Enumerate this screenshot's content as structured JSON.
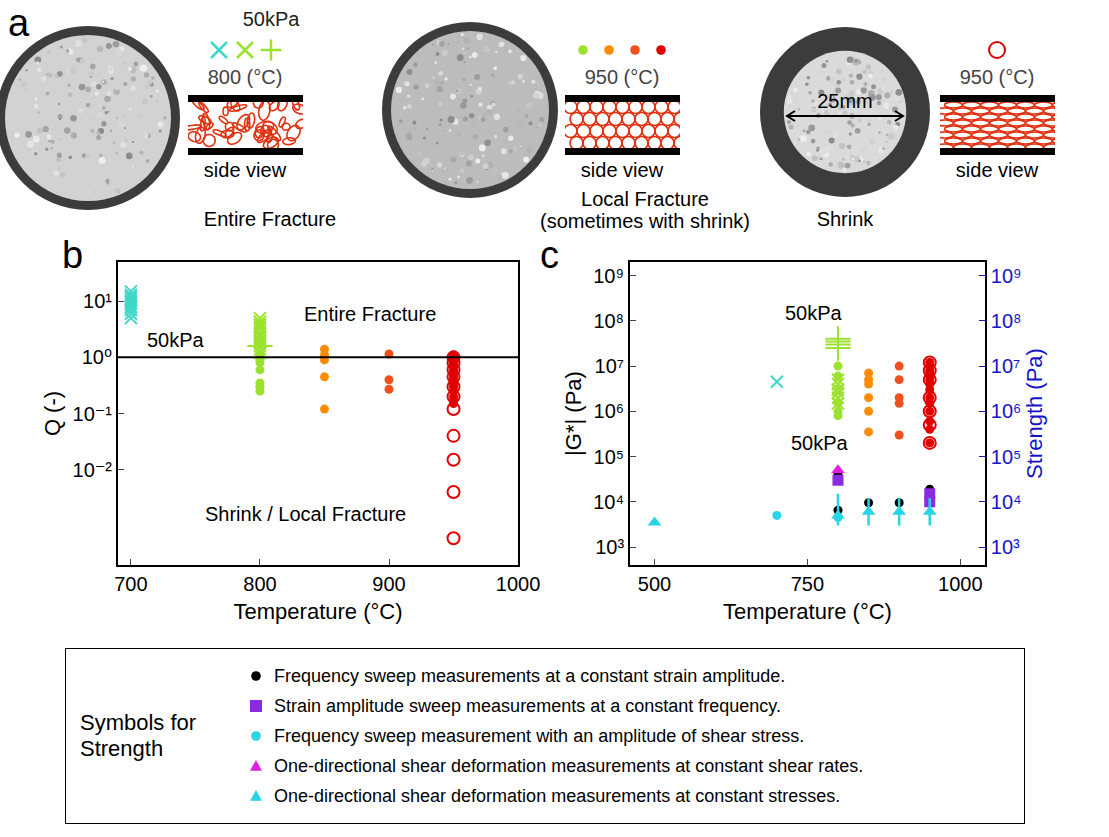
{
  "figure": {
    "panel_a": {
      "label": "a",
      "samples": [
        {
          "marks": [
            {
              "marker": "x",
              "color": "#3fd7c8"
            },
            {
              "marker": "x",
              "color": "#9be22f"
            },
            {
              "marker": "cross",
              "color": "#9be22f"
            }
          ],
          "pressure": "50kPa",
          "temperature": "800 (°C)",
          "side_label": "side view",
          "caption": [
            "Entire Fracture"
          ]
        },
        {
          "marks": [
            {
              "marker": "circle",
              "color": "#9be22f"
            },
            {
              "marker": "circle",
              "color": "#ff8c00"
            },
            {
              "marker": "circle",
              "color": "#f0501e"
            },
            {
              "marker": "circle",
              "color": "#e00000"
            }
          ],
          "temperature": "950 (°C)",
          "side_label": "side view",
          "caption": [
            "Local Fracture",
            "(sometimes with shrink)"
          ]
        },
        {
          "marks": [
            {
              "marker": "circle-open",
              "color": "#e00000"
            }
          ],
          "temperature": "950 (°C)",
          "side_label": "side view",
          "caption": [
            "Shrink"
          ],
          "scale_label": "25mm"
        }
      ]
    }
  },
  "chart_data": [
    {
      "type": "scatter",
      "label": "b",
      "x_label": "Temperature (°C)",
      "y_label": "Q (-)",
      "log": "y",
      "grid": false,
      "xlim": [
        690,
        1000
      ],
      "xticks": [
        700,
        800,
        900,
        1000
      ],
      "ylim": [
        0.0002,
        50
      ],
      "yticks": [
        {
          "value": 0.01,
          "label": "10⁻²"
        },
        {
          "value": 0.1,
          "label": "10⁻¹"
        },
        {
          "value": 1,
          "label": "10⁰"
        },
        {
          "value": 10,
          "label": "10¹"
        }
      ],
      "reference_line": 1,
      "annotations": [
        {
          "text": "50kPa",
          "x": 735,
          "y": 2.0
        },
        {
          "text": "Entire Fracture",
          "x": 885,
          "y": 6
        },
        {
          "text": "Shrink / Local Fracture",
          "x": 835,
          "y": 0.0016
        }
      ],
      "series": [
        {
          "marker": "x",
          "color": "#3fd7c8",
          "x": [
            700,
            700,
            700,
            700,
            700,
            700,
            700,
            700,
            700,
            700
          ],
          "values": [
            5,
            6,
            7,
            8,
            9,
            10,
            11,
            12,
            13,
            15
          ]
        },
        {
          "marker": "x",
          "color": "#9be22f",
          "x": [
            800,
            800,
            800,
            800,
            800,
            800,
            800,
            800,
            800,
            800,
            800,
            800
          ],
          "values": [
            1.2,
            1.4,
            1.6,
            1.8,
            2,
            2.3,
            2.6,
            3,
            3.4,
            3.8,
            4.3,
            5
          ]
        },
        {
          "marker": "cross",
          "color": "#9be22f",
          "x": [
            800
          ],
          "values": [
            1.6
          ]
        },
        {
          "marker": "circle",
          "color": "#9be22f",
          "x": [
            800,
            800,
            800,
            800,
            800,
            800,
            800,
            800
          ],
          "values": [
            0.25,
            0.3,
            0.35,
            0.6,
            0.8,
            0.9,
            1.0,
            1.1
          ]
        },
        {
          "marker": "circle",
          "color": "#ff8c00",
          "x": [
            850,
            850,
            850,
            850,
            850
          ],
          "values": [
            1.4,
            1.1,
            0.9,
            0.45,
            0.12
          ]
        },
        {
          "marker": "circle",
          "color": "#f0501e",
          "x": [
            900,
            900,
            900
          ],
          "values": [
            1.15,
            0.4,
            0.27
          ]
        },
        {
          "marker": "circle",
          "color": "#e00000",
          "x": [
            950,
            950,
            950,
            950,
            950,
            950,
            950,
            950,
            950,
            950,
            950,
            950,
            950,
            950,
            950
          ],
          "values": [
            1.1,
            1.0,
            0.9,
            0.8,
            0.7,
            0.6,
            0.5,
            0.45,
            0.4,
            0.35,
            0.3,
            0.25,
            0.2,
            0.17,
            0.15
          ]
        },
        {
          "marker": "circle-open",
          "color": "#e00000",
          "x": [
            950,
            950,
            950,
            950,
            950,
            950,
            950,
            950,
            950,
            950,
            950
          ],
          "values": [
            1.0,
            0.8,
            0.6,
            0.45,
            0.3,
            0.2,
            0.12,
            0.04,
            0.015,
            0.004,
            0.0006
          ]
        }
      ]
    },
    {
      "type": "scatter",
      "label": "c",
      "x_label": "Temperature (°C)",
      "y_label": "|G*| (Pa)",
      "y2_label": "Strength (Pa)",
      "log": "y",
      "grid": false,
      "legend": "bottom",
      "legend_title": "Symbols for Strength",
      "xlim": [
        460,
        1040
      ],
      "xticks": [
        500,
        750,
        1000
      ],
      "ylim": [
        400,
        2000000000
      ],
      "yticks": [
        {
          "value": 1000,
          "label": "10³"
        },
        {
          "value": 10000,
          "label": "10⁴"
        },
        {
          "value": 100000,
          "label": "10⁵"
        },
        {
          "value": 1000000,
          "label": "10⁶"
        },
        {
          "value": 10000000,
          "label": "10⁷"
        },
        {
          "value": 100000000,
          "label": "10⁸"
        },
        {
          "value": 1000000000,
          "label": "10⁹"
        }
      ],
      "y2lim": [
        400,
        2000000000
      ],
      "y2ticks": [
        {
          "value": 1000,
          "label": "10³"
        },
        {
          "value": 10000,
          "label": "10⁴"
        },
        {
          "value": 100000,
          "label": "10⁵"
        },
        {
          "value": 1000000,
          "label": "10⁶"
        },
        {
          "value": 10000000,
          "label": "10⁷"
        },
        {
          "value": 100000000,
          "label": "10⁸"
        },
        {
          "value": 1000000000,
          "label": "10⁹"
        }
      ],
      "annotations": [
        {
          "text": "50kPa",
          "x": 760,
          "y": 150000000
        },
        {
          "text": "50kPa",
          "x": 770,
          "y": 200000
        }
      ],
      "series": [
        {
          "marker": "x",
          "color": "#3fd7c8",
          "x": [
            700
          ],
          "values": [
            4500000
          ]
        },
        {
          "marker": "cross",
          "color": "#9be22f",
          "x": [
            800,
            800,
            800,
            800
          ],
          "values": [
            25000000,
            30000000,
            35000000,
            40000000
          ]
        },
        {
          "marker": "x",
          "color": "#9be22f",
          "x": [
            800,
            800,
            800,
            800,
            800,
            800
          ],
          "values": [
            1500000,
            2000000,
            2500000,
            3000000,
            4000000,
            5000000
          ]
        },
        {
          "marker": "circle",
          "color": "#9be22f",
          "x": [
            800,
            800,
            800,
            800,
            800,
            800
          ],
          "values": [
            800000,
            1000000,
            1500000,
            3000000,
            6000000,
            10000000
          ]
        },
        {
          "marker": "circle",
          "color": "#ff8c00",
          "x": [
            850,
            850,
            850,
            850,
            850,
            850
          ],
          "values": [
            350000,
            1000000,
            2000000,
            4000000,
            5000000,
            7000000
          ]
        },
        {
          "marker": "circle",
          "color": "#f0501e",
          "x": [
            900,
            900,
            900,
            900,
            900
          ],
          "values": [
            300000,
            1500000,
            2000000,
            5000000,
            10000000
          ]
        },
        {
          "marker": "circle",
          "color": "#e00000",
          "x": [
            950,
            950,
            950,
            950,
            950,
            950,
            950,
            950,
            950,
            950,
            950,
            950,
            950,
            950
          ],
          "values": [
            200000,
            400000,
            600000,
            1000000,
            1500000,
            2000000,
            3000000,
            4000000,
            5000000,
            6000000,
            7000000,
            8000000,
            10000000,
            12000000
          ]
        },
        {
          "marker": "circle-open",
          "color": "#e00000",
          "x": [
            950,
            950,
            950,
            950,
            950,
            950,
            950
          ],
          "values": [
            200000,
            500000,
            1000000,
            2000000,
            5000000,
            8000000,
            12000000
          ]
        },
        {
          "name": "Frequency sweep measurements at a constant strain amplitude.",
          "axis": "y2",
          "marker": "circle",
          "color": "#000000",
          "x": [
            800,
            800,
            850,
            900,
            950
          ],
          "values": [
            40000,
            6500,
            9500,
            9500,
            19000
          ]
        },
        {
          "name": "Strain amplitude sweep measurements at a constant frequency.",
          "axis": "y2",
          "marker": "square",
          "color": "#8a2be2",
          "x": [
            800,
            950,
            950
          ],
          "values": [
            30000,
            15000,
            10000
          ]
        },
        {
          "name": "Frequency sweep measurement with an amplitude of shear stress.",
          "axis": "y2",
          "marker": "circle",
          "color": "#29d4e6",
          "x": [
            700,
            800
          ],
          "values": [
            5000,
            4500
          ]
        },
        {
          "name": "One-directional shear deformation measurements at constant shear rates.",
          "axis": "y2",
          "marker": "triangle",
          "color": "#e020e0",
          "x": [
            800
          ],
          "values": [
            50000
          ]
        },
        {
          "name": "One-directional shear deformation measurements at constant stresses.",
          "axis": "y2",
          "marker": "triangle",
          "color": "#29d4e6",
          "x": [
            500,
            800,
            850,
            900,
            950
          ],
          "values": [
            3500,
            5000,
            6000,
            6000,
            6000
          ],
          "error_plus": [
            0,
            10000,
            6000,
            6000,
            6000
          ],
          "error_minus": [
            0,
            2000,
            3000,
            3000,
            3000
          ]
        }
      ]
    }
  ]
}
